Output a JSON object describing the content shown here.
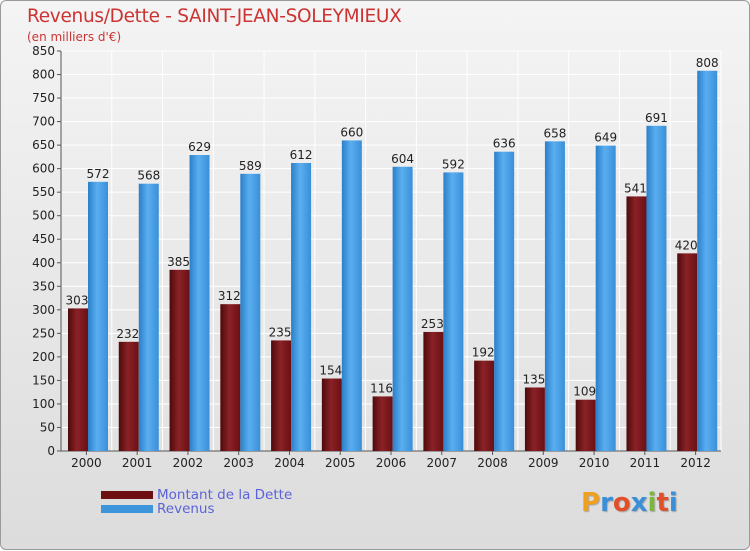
{
  "title": "Revenus/Dette - SAINT-JEAN-SOLEYMIEUX",
  "subtitle": "(en milliers d'€)",
  "logo_text": "Proxiti",
  "colors": {
    "dette": "#7a1418",
    "revenus": "#3f95db",
    "title": "#cc3333",
    "legend_text": "#5b63d9"
  },
  "chart_data": {
    "type": "bar",
    "title": "Revenus/Dette - SAINT-JEAN-SOLEYMIEUX",
    "subtitle": "(en milliers d'€)",
    "categories": [
      "2000",
      "2001",
      "2002",
      "2003",
      "2004",
      "2005",
      "2006",
      "2007",
      "2008",
      "2009",
      "2010",
      "2011",
      "2012"
    ],
    "series": [
      {
        "name": "Montant de la Dette",
        "color": "#7a1418",
        "values": [
          303,
          232,
          385,
          312,
          235,
          154,
          116,
          253,
          192,
          135,
          109,
          541,
          420
        ]
      },
      {
        "name": "Revenus",
        "color": "#3f95db",
        "values": [
          572,
          568,
          629,
          589,
          612,
          660,
          604,
          592,
          636,
          658,
          649,
          691,
          808
        ]
      }
    ],
    "ylim": [
      0,
      850
    ],
    "ytick_step": 50,
    "grid": true,
    "legend_position": "bottom-left"
  }
}
